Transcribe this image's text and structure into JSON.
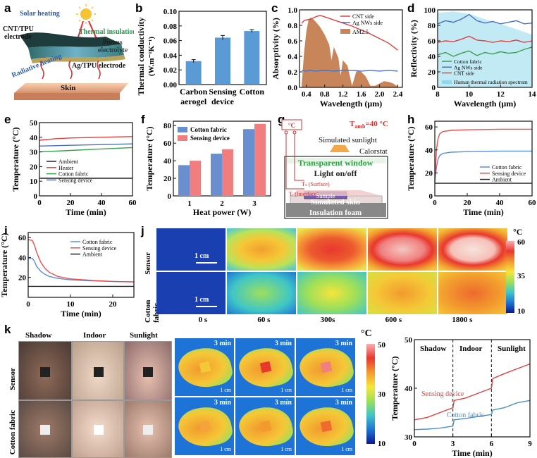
{
  "panel_labels": {
    "a": "a",
    "b": "b",
    "c": "c",
    "d": "d",
    "e": "e",
    "f": "f",
    "g": "g",
    "h": "h",
    "i": "i",
    "j": "j",
    "k": "k"
  },
  "panel_a": {
    "solar": "Solar heating",
    "cnt": "CNT/TPU",
    "electrode": "electrode",
    "thermal": "Thermal insulation",
    "porous": "Porous",
    "electrolyte": "electrolyte",
    "ag": "Ag/TPU electrode",
    "radiative": "Radiative heating",
    "skin": "Skin"
  },
  "chart_data": [
    {
      "panel": "b",
      "type": "bar",
      "categories": [
        "Carbon aerogel",
        "Sensing device",
        "Cotton"
      ],
      "category_lines": [
        [
          "Carbon",
          "aerogel"
        ],
        [
          "Sensing",
          "device"
        ],
        [
          "Cotton"
        ]
      ],
      "values": [
        0.032,
        0.064,
        0.073
      ],
      "errors": [
        0.002,
        0.003,
        0.002
      ],
      "ylim": [
        0,
        0.1
      ],
      "yticks": [
        "0.00",
        "0.02",
        "0.04",
        "0.06",
        "0.08",
        "0.10"
      ],
      "ylabel": "Thermal conductivity",
      "ylabel2": "(W.m⁻¹K⁻¹)",
      "color": "#5b9bd5"
    },
    {
      "panel": "c",
      "type": "line",
      "xlabel": "Wavelength (μm)",
      "ylabel": "Absorptivity (%)",
      "xlim": [
        0.25,
        2.5
      ],
      "ylim": [
        0,
        1.0
      ],
      "xticks": [
        "0.4",
        "0.8",
        "1.2",
        "1.6",
        "2.0",
        "2.4"
      ],
      "yticks": [
        "0.0",
        "0.2",
        "0.4",
        "0.6",
        "0.8",
        "1.0"
      ],
      "series": [
        {
          "name": "CNT side",
          "color": "#e04040",
          "x": [
            0.3,
            0.35,
            0.4,
            0.5,
            0.6,
            0.7,
            0.8,
            1.0,
            1.2,
            1.4,
            1.6,
            1.8,
            2.0,
            2.2,
            2.4
          ],
          "y": [
            0.83,
            0.86,
            0.87,
            0.88,
            0.91,
            0.93,
            0.91,
            0.87,
            0.83,
            0.79,
            0.74,
            0.69,
            0.63,
            0.57,
            0.48
          ]
        },
        {
          "name": "Ag NWs side",
          "color": "#4a70c0",
          "x": [
            0.3,
            0.4,
            0.5,
            0.6,
            0.8,
            1.0,
            1.2,
            1.4,
            1.6,
            1.8,
            2.0,
            2.2,
            2.4
          ],
          "y": [
            0.22,
            0.21,
            0.22,
            0.21,
            0.22,
            0.21,
            0.22,
            0.22,
            0.21,
            0.22,
            0.21,
            0.22,
            0.21
          ]
        },
        {
          "name": "AM2.5",
          "color": "#c9855a",
          "x": [
            0.3,
            0.35,
            0.4,
            0.45,
            0.5,
            0.55,
            0.6,
            0.7,
            0.8,
            0.9,
            0.95,
            1.0,
            1.1,
            1.15,
            1.2,
            1.3,
            1.4,
            1.5,
            1.6,
            1.7,
            1.8,
            1.9,
            2.0,
            2.1,
            2.2,
            2.3,
            2.4
          ],
          "y": [
            0.05,
            0.45,
            0.72,
            0.88,
            0.9,
            0.88,
            0.85,
            0.78,
            0.68,
            0.55,
            0.35,
            0.52,
            0.38,
            0.15,
            0.35,
            0.28,
            0.02,
            0.22,
            0.2,
            0.14,
            0.02,
            0.02,
            0.05,
            0.08,
            0.07,
            0.05,
            0.01
          ]
        }
      ]
    },
    {
      "panel": "d",
      "type": "line",
      "xlabel": "Wavelength (μm)",
      "ylabel": "Reflectivity (%)",
      "xlim": [
        8,
        14
      ],
      "ylim": [
        0,
        100
      ],
      "xticks": [
        "8",
        "10",
        "12",
        "14"
      ],
      "yticks": [
        "0",
        "20",
        "40",
        "60",
        "80",
        "100"
      ],
      "series": [
        {
          "name": "Cotton fabric",
          "color": "#3aa04a",
          "x": [
            8,
            8.5,
            9,
            9.5,
            10,
            10.5,
            11,
            11.5,
            12,
            12.5,
            13,
            13.5,
            14
          ],
          "y": [
            42,
            45,
            40,
            44,
            47,
            41,
            45,
            43,
            46,
            44,
            45,
            49,
            52
          ]
        },
        {
          "name": "Ag NWs side",
          "color": "#4a70c0",
          "x": [
            8,
            8.5,
            9,
            9.5,
            10,
            10.5,
            11,
            11.5,
            12,
            12.5,
            13,
            13.5,
            14
          ],
          "y": [
            82,
            86,
            84,
            88,
            94,
            86,
            83,
            85,
            82,
            84,
            86,
            82,
            83
          ]
        },
        {
          "name": "CNT side",
          "color": "#e04040",
          "x": [
            8,
            8.5,
            9,
            9.5,
            10,
            10.5,
            11,
            11.5,
            12,
            12.5,
            13,
            13.5,
            14
          ],
          "y": [
            58,
            60,
            59,
            62,
            66,
            61,
            60,
            58,
            60,
            59,
            61,
            58,
            60
          ]
        },
        {
          "name": "Human thermal radiation spectrum",
          "color": "#8fd8ec",
          "x": [
            8,
            9,
            10,
            11,
            12,
            13,
            14
          ],
          "y": [
            96,
            98,
            95,
            88,
            82,
            75,
            68
          ]
        }
      ]
    },
    {
      "panel": "e",
      "type": "line",
      "xlabel": "Time (min)",
      "ylabel": "Temperature (°C)",
      "xlim": [
        0,
        60
      ],
      "ylim": [
        0,
        50
      ],
      "xticks": [
        "0",
        "20",
        "40",
        "60"
      ],
      "yticks": [
        "0",
        "10",
        "20",
        "30",
        "40",
        "50"
      ],
      "series": [
        {
          "name": "Ambient",
          "color": "#222222",
          "x": [
            0,
            60
          ],
          "y": [
            12,
            12
          ]
        },
        {
          "name": "Heater",
          "color": "#e04040",
          "x": [
            0,
            10,
            20,
            40,
            60
          ],
          "y": [
            38,
            39,
            39.5,
            40,
            40.5
          ]
        },
        {
          "name": "Cotton fabric",
          "color": "#3aa04a",
          "x": [
            0,
            20,
            40,
            60
          ],
          "y": [
            30,
            31,
            32,
            33
          ]
        },
        {
          "name": "Sensing device",
          "color": "#4a70c0",
          "x": [
            0,
            20,
            40,
            60
          ],
          "y": [
            34,
            34.5,
            35,
            35.5
          ]
        }
      ]
    },
    {
      "panel": "f",
      "type": "bar",
      "categories": [
        "1",
        "2",
        "3"
      ],
      "xlabel": "Heat power (W)",
      "ylabel": "Temperature (°C)",
      "ylim": [
        0,
        85
      ],
      "yticks": [
        "0",
        "20",
        "40",
        "60",
        "80"
      ],
      "series": [
        {
          "name": "Cotton fabric",
          "color": "#6a8fd0",
          "values": [
            35,
            48,
            76
          ]
        },
        {
          "name": "Sensing device",
          "color": "#f07e7e",
          "values": [
            40,
            53,
            82
          ]
        }
      ]
    },
    {
      "panel": "h",
      "type": "line",
      "xlabel": "Time (min)",
      "ylabel": "Temperature (°C)",
      "xlim": [
        0,
        60
      ],
      "ylim": [
        0,
        65
      ],
      "xticks": [
        "0",
        "20",
        "40",
        "60"
      ],
      "yticks": [
        "0",
        "20",
        "40",
        "60"
      ],
      "series": [
        {
          "name": "Cotton fabric",
          "color": "#5b8fd5",
          "x": [
            0,
            1,
            2,
            3,
            5,
            10,
            20,
            40,
            60
          ],
          "y": [
            12,
            25,
            32,
            35,
            37,
            38,
            38.5,
            39,
            39
          ]
        },
        {
          "name": "Sensing device",
          "color": "#e85050",
          "x": [
            0,
            1,
            2,
            3,
            5,
            10,
            20,
            40,
            60
          ],
          "y": [
            12,
            40,
            50,
            54,
            56,
            57,
            57.5,
            58,
            58
          ]
        },
        {
          "name": "Ambient",
          "color": "#222222",
          "x": [
            0,
            60
          ],
          "y": [
            11,
            11
          ]
        }
      ]
    },
    {
      "panel": "i",
      "type": "line",
      "xlabel": "Time (min)",
      "ylabel": "Temperature (°C)",
      "xlim": [
        0,
        25
      ],
      "ylim": [
        0,
        65
      ],
      "xticks": [
        "0",
        "10",
        "20"
      ],
      "yticks": [
        "20",
        "40",
        "60"
      ],
      "series": [
        {
          "name": "Cotton fabric",
          "color": "#5b8fd5",
          "x": [
            0,
            1,
            1.5,
            2,
            3,
            4,
            5,
            7,
            10,
            15,
            20,
            25
          ],
          "y": [
            39,
            39,
            36,
            31,
            26,
            23,
            21,
            19,
            17.5,
            16.5,
            16,
            15.5
          ]
        },
        {
          "name": "Sensing device",
          "color": "#e85050",
          "x": [
            0,
            1,
            1.5,
            2,
            3,
            4,
            5,
            7,
            10,
            15,
            20,
            25
          ],
          "y": [
            58,
            57,
            52,
            45,
            35,
            29,
            25,
            21,
            18.5,
            17,
            16,
            15.5
          ]
        },
        {
          "name": "Ambient",
          "color": "#222222",
          "x": [
            0,
            25
          ],
          "y": [
            11,
            11
          ]
        }
      ]
    },
    {
      "panel": "k",
      "type": "line",
      "xlabel": "Time (min)",
      "ylabel": "Temperature (°C)",
      "xlim": [
        0,
        9
      ],
      "ylim": [
        30,
        50
      ],
      "xticks": [
        "0",
        "3",
        "6",
        "9"
      ],
      "yticks": [
        "30",
        "40",
        "50"
      ],
      "series": [
        {
          "name": "Sensing device",
          "color": "#e04040",
          "x": [
            0,
            1,
            2,
            3,
            3.1,
            4,
            5,
            6,
            6.1,
            7,
            8,
            9
          ],
          "y": [
            33.5,
            34,
            35,
            36,
            37.5,
            38,
            39,
            40,
            42,
            43,
            44,
            45
          ]
        },
        {
          "name": "Cotton fabric",
          "color": "#4a90d0",
          "x": [
            0,
            1,
            2,
            3,
            3.1,
            4,
            5,
            6,
            6.1,
            7,
            8,
            9
          ],
          "y": [
            31.5,
            31.6,
            31.8,
            32.2,
            33.5,
            33.8,
            34.2,
            34.6,
            35.5,
            36,
            37,
            37.5
          ]
        }
      ]
    }
  ],
  "panel_b_text": {
    "xcat1": "Carbon",
    "xcat1b": "aerogel",
    "xcat2": "Sensing",
    "xcat2b": "device",
    "xcat3": "Cotton"
  },
  "panel_g": {
    "tamb": "T",
    "tamb_sub": "amb",
    "tamb_val": "=40 °C",
    "sim_sun": "Simulated sunlight",
    "calorstat": "Calorstat",
    "window": "Transparent window",
    "light": "Light on/off",
    "ts": "Tₛ (Surface)",
    "ti": "Tᵢ (Interface)",
    "sample": "Sample",
    "skin": "Simulated skin",
    "foam": "Insulation foam",
    "unit": "°C"
  },
  "panel_j": {
    "rows": [
      "Sensor",
      "Cotton fabric"
    ],
    "times": [
      "0 s",
      "60 s",
      "300s",
      "600 s",
      "1800 s"
    ],
    "scale": "1 cm",
    "unit": "°C",
    "max": "60",
    "mid": "35",
    "min": "10"
  },
  "panel_k": {
    "cols": [
      "Shadow",
      "Indoor",
      "Sunlight"
    ],
    "rows": [
      "Sensor",
      "Cotton fabric"
    ],
    "time": "3 min",
    "scale": "1 cm",
    "unit": "°C",
    "max": "50",
    "mid": "30",
    "min": "10",
    "phases": [
      "Shadow",
      "Indoor",
      "Sunlight"
    ],
    "sensing_label": "Sensing device",
    "cotton_label": "Cotton fabric"
  },
  "colors": {
    "colormap": [
      "#0b1a8c",
      "#1e74d6",
      "#3fc6c6",
      "#9de05a",
      "#f5e53a",
      "#f29a2e",
      "#e8382e",
      "#f7b0b0"
    ]
  }
}
